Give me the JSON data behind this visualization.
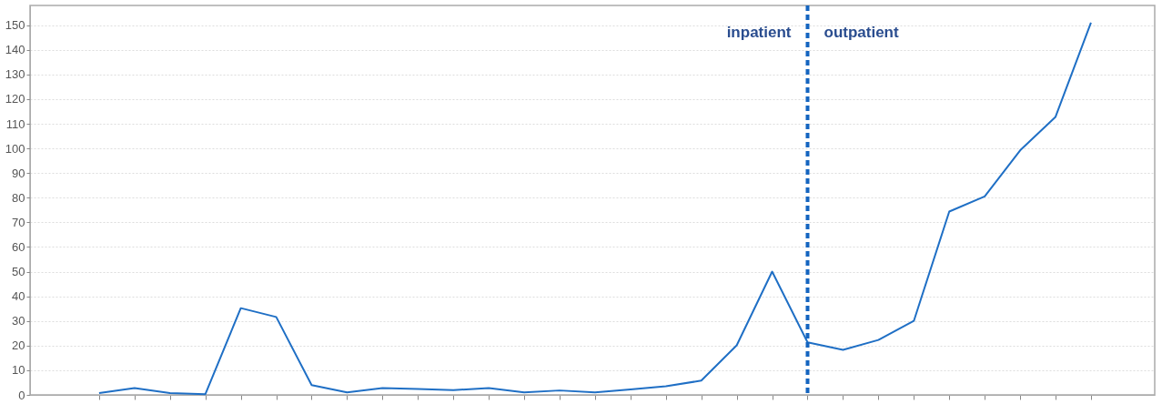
{
  "chart_data": {
    "type": "line",
    "categories": [
      null,
      null,
      null,
      null,
      null,
      null,
      null,
      null,
      null,
      null,
      null,
      null,
      null,
      null,
      null,
      null,
      null,
      null,
      null,
      null,
      null,
      null,
      null,
      null,
      null,
      null,
      null,
      null,
      null
    ],
    "series": [
      {
        "color": "#1f6fc5",
        "values": [
          0.7,
          2.8,
          0.7,
          0.3,
          35.2,
          31.6,
          4,
          1,
          2.8,
          2.4,
          1.9,
          2.8,
          1,
          1.8,
          1,
          2.2,
          3.5,
          5.8,
          20.1,
          50,
          21.3,
          18.3,
          22.3,
          30,
          74.4,
          80.5,
          99.2,
          112.8,
          151
        ]
      }
    ],
    "ylim": [
      0,
      158
    ],
    "yticks": [
      0,
      10,
      20,
      30,
      40,
      50,
      60,
      70,
      80,
      90,
      100,
      110,
      120,
      130,
      140,
      150
    ],
    "grid": "y",
    "annotations": [
      "inpatient",
      "outpatient"
    ]
  }
}
